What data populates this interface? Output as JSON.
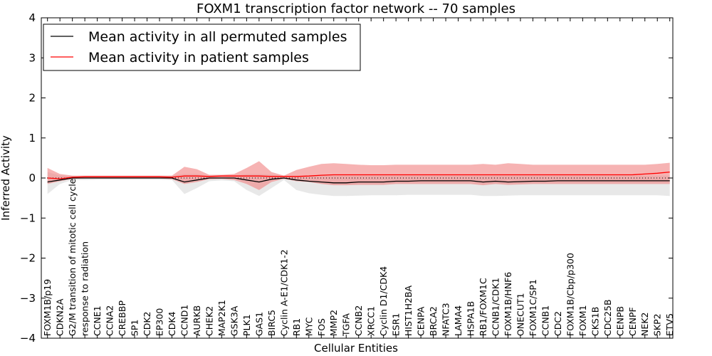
{
  "chart_data": {
    "type": "line",
    "title": "FOXM1 transcription factor network -- 70 samples",
    "xlabel": "Cellular Entities",
    "ylabel": "Inferred Activity",
    "ylim": [
      -4,
      4
    ],
    "yticks": [
      -4,
      -3,
      -2,
      -1,
      0,
      1,
      2,
      3,
      4
    ],
    "ytick_labels": [
      "−4",
      "−3",
      "−2",
      "−1",
      "0",
      "1",
      "2",
      "3",
      "4"
    ],
    "legend_position": "upper-left",
    "categories": [
      "FOXM1B/p19",
      "CDKN2A",
      "G2/M transition of mitotic cell cycle",
      "response to radiation",
      "CCNE1",
      "CCNA2",
      "CREBBP",
      "SP1",
      "CDK2",
      "EP300",
      "CDK4",
      "CCND1",
      "AURKB",
      "CHEK2",
      "MAP2K1",
      "GSK3A",
      "PLK1",
      "GAS1",
      "BIRC5",
      "Cyclin A-E1/CDK1-2",
      "RB1",
      "MYC",
      "FOS",
      "MMP2",
      "TGFA",
      "CCNB2",
      "XRCC1",
      "Cyclin D1/CDK4",
      "ESR1",
      "HIST1H2BA",
      "CENPA",
      "BRCA2",
      "NFATC3",
      "LAMA4",
      "HSPA1B",
      "RB1/FOXM1C",
      "CCNB1/CDK1",
      "FOXM1B/HNF6",
      "ONECUT1",
      "FOXM1C/SP1",
      "CCNB1",
      "CDC2",
      "FOXM1B/Cbp/p300",
      "FOXM1",
      "CKS1B",
      "CDC25B",
      "CENPB",
      "CENPF",
      "NEK2",
      "SKP2",
      "ETV5"
    ],
    "series": [
      {
        "name": "Mean activity in all permuted samples",
        "color": "#000000",
        "band_color": "#e6e6e6",
        "values": [
          -0.1,
          -0.05,
          0.0,
          0.0,
          0.0,
          0.0,
          0.0,
          0.0,
          0.0,
          0.0,
          0.0,
          -0.1,
          -0.05,
          0.0,
          0.0,
          0.0,
          -0.05,
          -0.1,
          -0.03,
          0.0,
          -0.05,
          -0.08,
          -0.1,
          -0.12,
          -0.12,
          -0.1,
          -0.1,
          -0.1,
          -0.08,
          -0.08,
          -0.07,
          -0.07,
          -0.07,
          -0.07,
          -0.07,
          -0.1,
          -0.08,
          -0.1,
          -0.09,
          -0.08,
          -0.08,
          -0.07,
          -0.07,
          -0.07,
          -0.07,
          -0.07,
          -0.07,
          -0.07,
          -0.07,
          -0.07,
          -0.07
        ],
        "lower": [
          -0.4,
          -0.15,
          -0.05,
          -0.05,
          -0.04,
          -0.04,
          -0.04,
          -0.04,
          -0.04,
          -0.04,
          -0.05,
          -0.4,
          -0.25,
          -0.08,
          -0.06,
          -0.08,
          -0.3,
          -0.45,
          -0.25,
          -0.05,
          -0.3,
          -0.38,
          -0.42,
          -0.45,
          -0.45,
          -0.44,
          -0.43,
          -0.43,
          -0.43,
          -0.42,
          -0.42,
          -0.42,
          -0.42,
          -0.42,
          -0.42,
          -0.45,
          -0.45,
          -0.44,
          -0.43,
          -0.43,
          -0.43,
          -0.43,
          -0.43,
          -0.43,
          -0.43,
          -0.43,
          -0.43,
          -0.43,
          -0.43,
          -0.43,
          -0.45
        ],
        "upper": [
          0.15,
          0.06,
          0.05,
          0.04,
          0.04,
          0.04,
          0.04,
          0.04,
          0.04,
          0.04,
          0.06,
          0.1,
          0.1,
          0.05,
          0.05,
          0.05,
          0.1,
          0.1,
          0.08,
          0.05,
          0.05,
          0.05,
          0.06,
          0.06,
          0.06,
          0.06,
          0.06,
          0.06,
          0.06,
          0.06,
          0.06,
          0.06,
          0.06,
          0.06,
          0.06,
          0.06,
          0.06,
          0.06,
          0.06,
          0.06,
          0.06,
          0.06,
          0.06,
          0.06,
          0.06,
          0.06,
          0.06,
          0.06,
          0.06,
          0.06,
          0.06
        ]
      },
      {
        "name": "Mean activity in patient samples",
        "color": "#ff0000",
        "band_color": "#f08080",
        "values": [
          0.0,
          -0.02,
          0.02,
          0.03,
          0.03,
          0.03,
          0.03,
          0.03,
          0.03,
          0.03,
          0.02,
          0.05,
          0.05,
          0.04,
          0.05,
          0.05,
          0.05,
          0.05,
          0.04,
          0.04,
          0.04,
          0.05,
          0.07,
          0.08,
          0.08,
          0.08,
          0.08,
          0.08,
          0.08,
          0.08,
          0.08,
          0.08,
          0.08,
          0.08,
          0.08,
          0.08,
          0.08,
          0.08,
          0.08,
          0.08,
          0.08,
          0.08,
          0.08,
          0.08,
          0.08,
          0.08,
          0.08,
          0.08,
          0.1,
          0.12,
          0.15
        ],
        "lower": [
          -0.15,
          -0.08,
          -0.02,
          -0.01,
          -0.01,
          -0.01,
          -0.01,
          -0.01,
          -0.01,
          -0.01,
          -0.03,
          -0.15,
          -0.1,
          -0.03,
          -0.02,
          -0.05,
          -0.15,
          -0.3,
          -0.1,
          -0.02,
          -0.08,
          -0.1,
          -0.15,
          -0.18,
          -0.18,
          -0.17,
          -0.17,
          -0.17,
          -0.15,
          -0.15,
          -0.15,
          -0.15,
          -0.15,
          -0.15,
          -0.15,
          -0.18,
          -0.15,
          -0.17,
          -0.16,
          -0.15,
          -0.15,
          -0.15,
          -0.15,
          -0.15,
          -0.15,
          -0.15,
          -0.15,
          -0.15,
          -0.15,
          -0.15,
          -0.15
        ],
        "upper": [
          0.25,
          0.1,
          0.06,
          0.06,
          0.06,
          0.06,
          0.06,
          0.06,
          0.06,
          0.06,
          0.06,
          0.28,
          0.22,
          0.08,
          0.08,
          0.1,
          0.25,
          0.42,
          0.15,
          0.06,
          0.2,
          0.28,
          0.35,
          0.37,
          0.35,
          0.33,
          0.32,
          0.32,
          0.33,
          0.33,
          0.33,
          0.33,
          0.33,
          0.33,
          0.33,
          0.35,
          0.33,
          0.37,
          0.35,
          0.33,
          0.33,
          0.33,
          0.33,
          0.33,
          0.33,
          0.33,
          0.33,
          0.33,
          0.33,
          0.35,
          0.38
        ]
      }
    ],
    "zero_line": "dotted"
  }
}
